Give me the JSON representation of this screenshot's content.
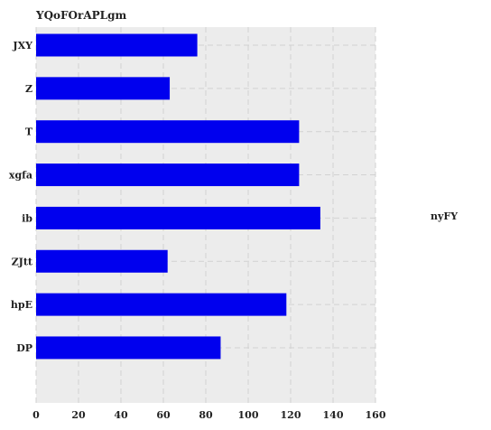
{
  "chart_data": {
    "type": "bar",
    "orientation": "horizontal",
    "title": "YQoFOrAPLgm",
    "categories": [
      "JXY",
      "Z",
      "T",
      "xgfa",
      "ib",
      "ZJtt",
      "hpE",
      "DP"
    ],
    "series": [
      {
        "name": "nyFY",
        "values": [
          76,
          63,
          124,
          124,
          134,
          62,
          118,
          87
        ],
        "color": "#0000ee"
      }
    ],
    "xlim": [
      0,
      160
    ],
    "xticks": [
      "0",
      "20",
      "40",
      "60",
      "80",
      "100",
      "120",
      "140",
      "160"
    ],
    "xlabel": "",
    "ylabel": "",
    "grid": true,
    "grid_style": "dashed",
    "plot_background": "#ececec",
    "legend_position": "right"
  }
}
